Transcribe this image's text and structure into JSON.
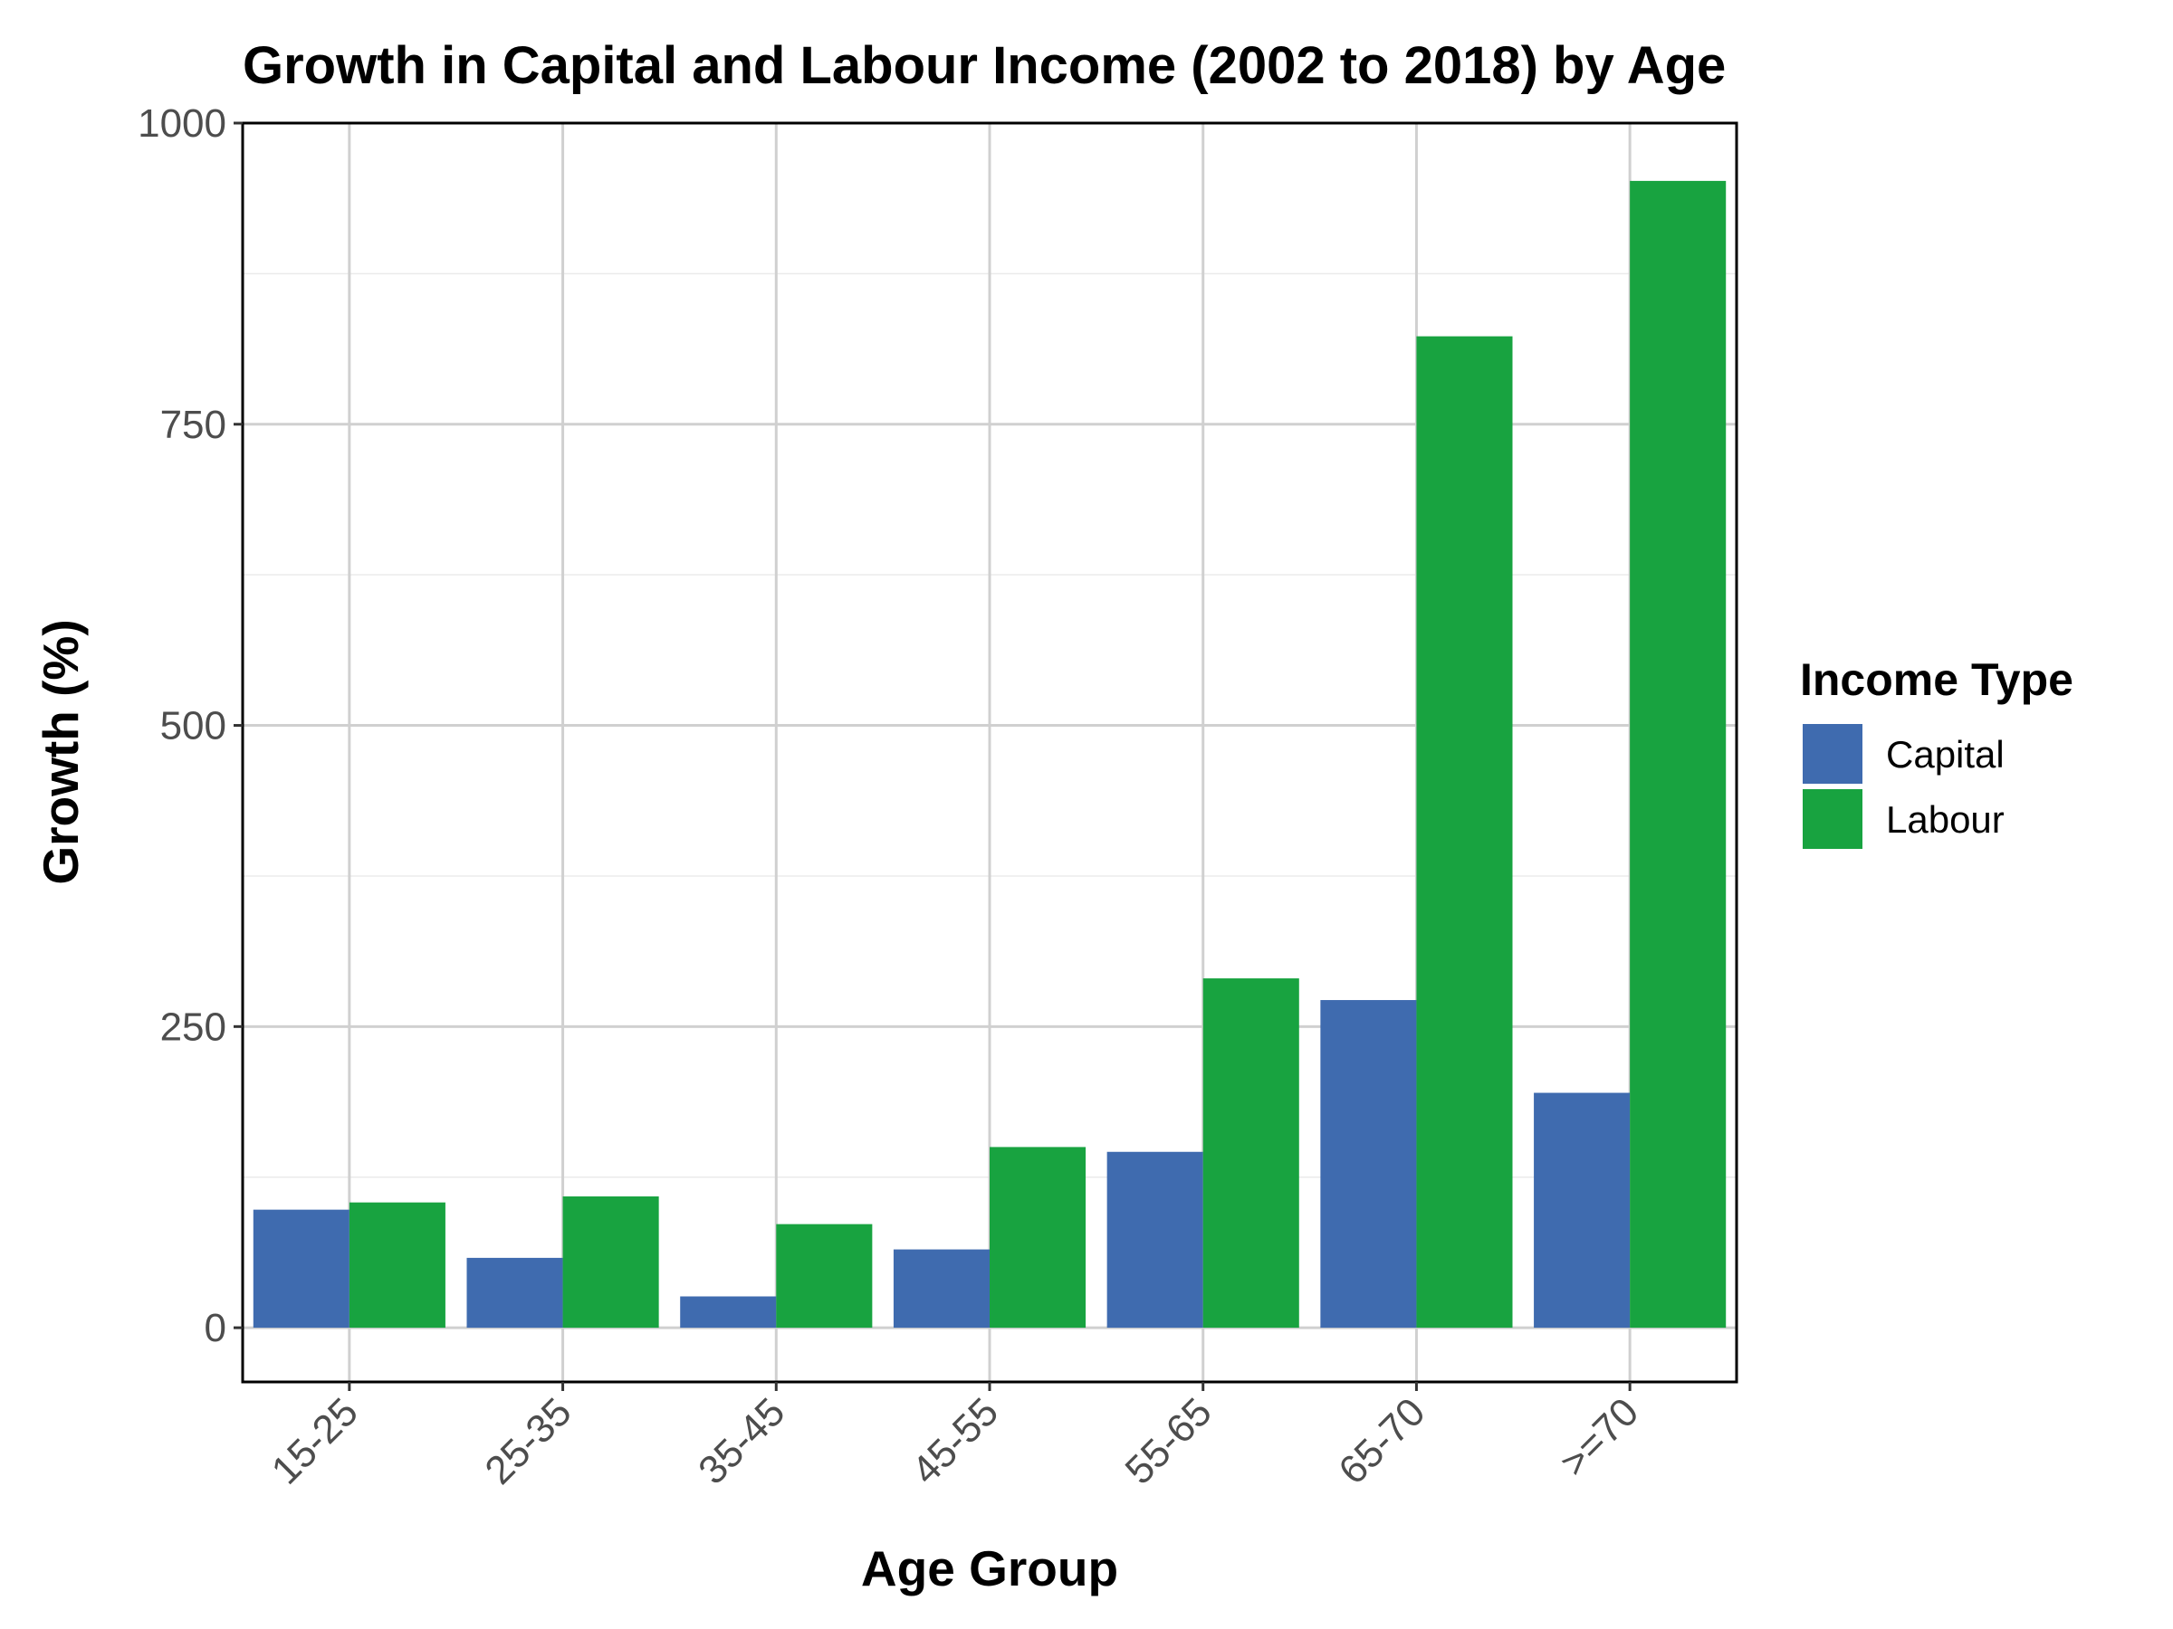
{
  "chart_data": {
    "type": "bar",
    "title": "Growth in Capital and Labour Income (2002 to 2018) by Age",
    "xlabel": "Age Group",
    "ylabel": "Growth (%)",
    "categories": [
      "15-25",
      "25-35",
      "35-45",
      "45-55",
      "55-65",
      "65-70",
      ">=70"
    ],
    "series": [
      {
        "name": "Capital",
        "color": "#3f6baf",
        "values": [
          98,
          58,
          26,
          65,
          146,
          272,
          195
        ]
      },
      {
        "name": "Labour",
        "color": "#18a340",
        "values": [
          104,
          109,
          86,
          150,
          290,
          823,
          952
        ]
      }
    ],
    "ylim": [
      -45,
      1000
    ],
    "yticks": [
      0,
      250,
      500,
      750,
      1000
    ],
    "grid": true,
    "legend": {
      "title": "Income Type",
      "position": "right"
    }
  }
}
